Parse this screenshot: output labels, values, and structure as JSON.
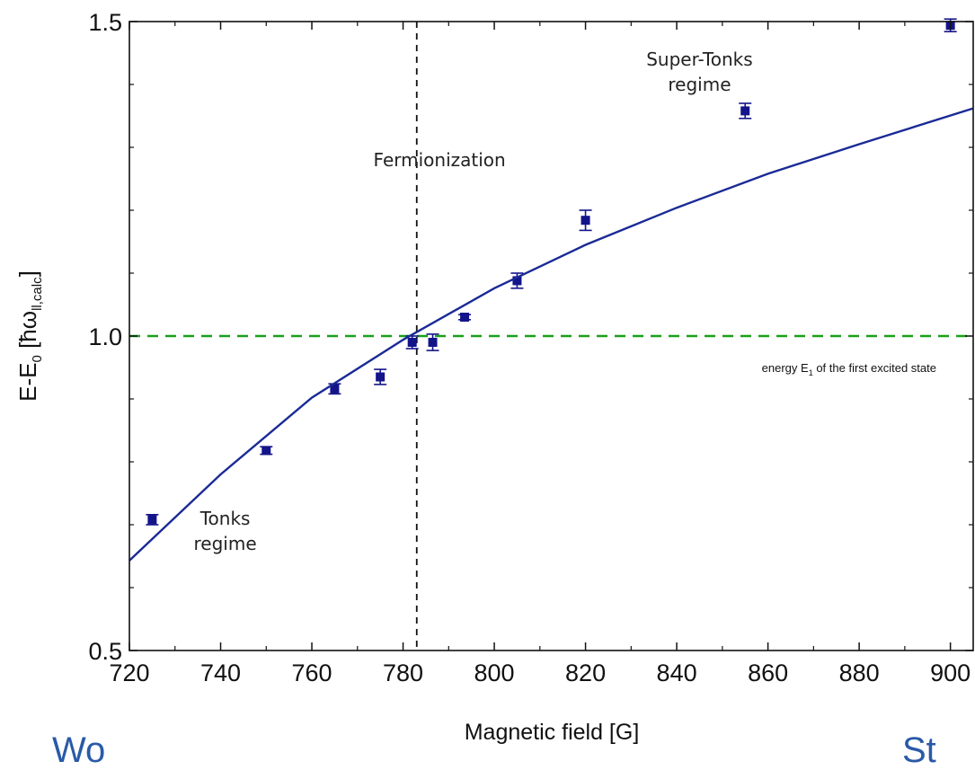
{
  "chart_data": {
    "type": "scatter",
    "xlabel": "Magnetic field [G]",
    "ylabel": {
      "main": "E-E",
      "sub": "0",
      "bracket_open": " [ħω",
      "bracket_sub": "ll,calc",
      "bracket_close": "]"
    },
    "xlim": [
      720,
      905
    ],
    "ylim": [
      0.5,
      1.5
    ],
    "x_ticks": [
      720,
      740,
      760,
      780,
      800,
      820,
      840,
      860,
      880,
      900
    ],
    "x_tick_labels": [
      "720",
      "740",
      "760",
      "780",
      "800",
      "820",
      "840",
      "860",
      "880",
      "900"
    ],
    "y_ticks": [
      0.5,
      1.0,
      1.5
    ],
    "y_tick_labels": [
      "0.5",
      "1.0",
      "1.5"
    ],
    "y_minor_ticks": [
      0.6,
      0.7,
      0.8,
      0.9,
      1.1,
      1.2,
      1.3,
      1.4
    ],
    "grid": false,
    "series": [
      {
        "kind": "points_with_error",
        "color": "#14148a",
        "points": [
          {
            "x": 725,
            "y": 0.708,
            "err": 0.008
          },
          {
            "x": 750,
            "y": 0.818,
            "err": 0.006
          },
          {
            "x": 765,
            "y": 0.916,
            "err": 0.008
          },
          {
            "x": 775,
            "y": 0.935,
            "err": 0.012
          },
          {
            "x": 782,
            "y": 0.99,
            "err": 0.01
          },
          {
            "x": 786.5,
            "y": 0.99,
            "err": 0.013
          },
          {
            "x": 793.5,
            "y": 1.03,
            "err": 0.004
          },
          {
            "x": 805,
            "y": 1.088,
            "err": 0.012
          },
          {
            "x": 820,
            "y": 1.184,
            "err": 0.016
          },
          {
            "x": 855,
            "y": 1.358,
            "err": 0.012
          },
          {
            "x": 900,
            "y": 1.494,
            "err": 0.01
          }
        ]
      },
      {
        "kind": "line",
        "color": "#1a2a96",
        "x": [
          720,
          740,
          760,
          780,
          800,
          820,
          840,
          860,
          880,
          905
        ],
        "y": [
          0.643,
          0.78,
          0.902,
          0.994,
          1.076,
          1.145,
          1.204,
          1.258,
          1.305,
          1.362
        ]
      }
    ],
    "reference_lines": [
      {
        "orientation": "horizontal",
        "value": 1.0,
        "color": "#1aa01a",
        "style": "dashed"
      },
      {
        "orientation": "vertical",
        "value": 783,
        "color": "#111111",
        "style": "dashed"
      }
    ],
    "annotations": [
      {
        "text": "Super-Tonks",
        "x": 845,
        "y": 1.43
      },
      {
        "text": "regime",
        "x": 845,
        "y": 1.39
      },
      {
        "text": "Fermionization",
        "x": 788,
        "y": 1.27
      },
      {
        "text": "Tonks",
        "x": 741,
        "y": 0.7
      },
      {
        "text": "regime",
        "x": 741,
        "y": 0.66
      }
    ],
    "energy_label": {
      "before": "energy E",
      "sub": "1",
      "after": " of the first excited state",
      "x": 904,
      "y": 0.955
    }
  },
  "bottom_text": {
    "left": "Wo",
    "right": "St"
  }
}
